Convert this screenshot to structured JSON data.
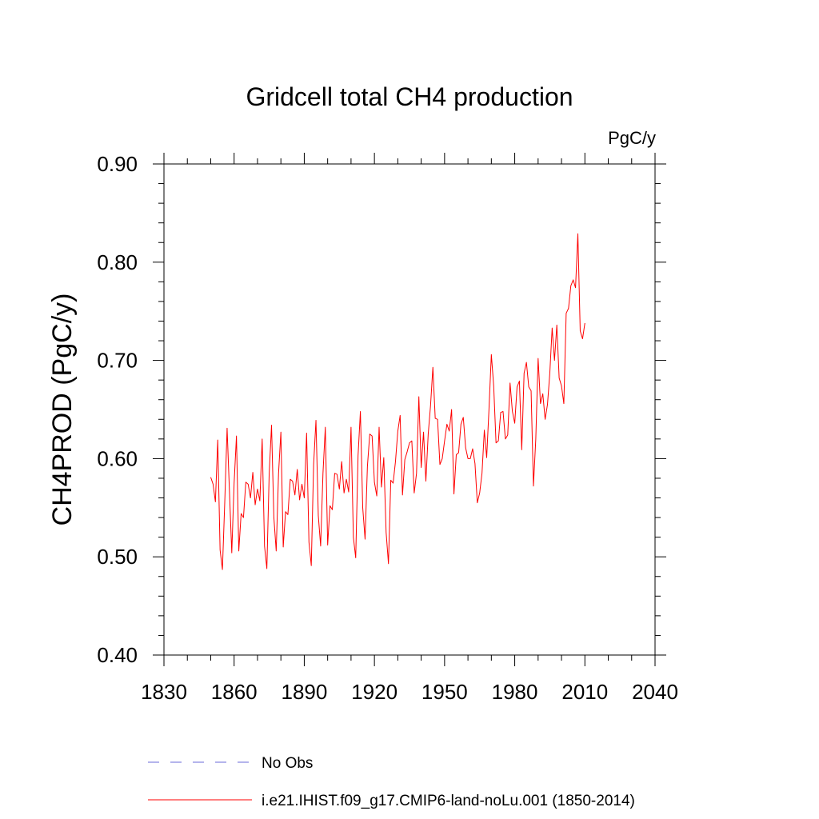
{
  "chart_data": {
    "type": "line",
    "title": "Gridcell total CH4 production",
    "units": "PgC/y",
    "ylabel": "CH4PROD  (PgC/y)",
    "xlabel": "",
    "xlim": [
      1830,
      2040
    ],
    "ylim": [
      0.4,
      0.9
    ],
    "x_ticks": [
      1830,
      1860,
      1890,
      1920,
      1950,
      1980,
      2010,
      2040
    ],
    "x_tick_labels": [
      "1830",
      "1860",
      "1890",
      "1920",
      "1950",
      "1980",
      "2010",
      "2040"
    ],
    "y_ticks": [
      0.4,
      0.5,
      0.6,
      0.7,
      0.8,
      0.9
    ],
    "y_tick_labels": [
      "0.40",
      "0.50",
      "0.60",
      "0.70",
      "0.80",
      "0.90"
    ],
    "grid": false,
    "legend_position": "bottom",
    "legend": [
      {
        "label": "No Obs",
        "color": "#6b6bd8",
        "style": "dashed"
      },
      {
        "label": "i.e21.IHIST.f09_g17.CMIP6-land-noLu.001 (1850-2014)",
        "color": "#ff0000",
        "style": "solid"
      }
    ],
    "series": [
      {
        "name": "i.e21.IHIST.f09_g17.CMIP6-land-noLu.001 (1850-2014)",
        "color": "#ff0000",
        "x_start": 1850,
        "x_step": 1,
        "values": [
          0.581,
          0.574,
          0.556,
          0.619,
          0.507,
          0.487,
          0.556,
          0.631,
          0.567,
          0.504,
          0.575,
          0.623,
          0.506,
          0.544,
          0.54,
          0.576,
          0.574,
          0.56,
          0.586,
          0.553,
          0.569,
          0.557,
          0.62,
          0.511,
          0.488,
          0.585,
          0.634,
          0.54,
          0.506,
          0.585,
          0.627,
          0.51,
          0.546,
          0.543,
          0.579,
          0.577,
          0.563,
          0.589,
          0.558,
          0.574,
          0.56,
          0.626,
          0.515,
          0.491,
          0.594,
          0.639,
          0.542,
          0.511,
          0.585,
          0.632,
          0.512,
          0.552,
          0.548,
          0.585,
          0.584,
          0.569,
          0.597,
          0.565,
          0.579,
          0.566,
          0.632,
          0.52,
          0.499,
          0.603,
          0.648,
          0.55,
          0.518,
          0.592,
          0.625,
          0.623,
          0.576,
          0.562,
          0.632,
          0.571,
          0.601,
          0.525,
          0.493,
          0.578,
          0.575,
          0.597,
          0.628,
          0.644,
          0.563,
          0.599,
          0.607,
          0.616,
          0.618,
          0.565,
          0.585,
          0.663,
          0.591,
          0.627,
          0.577,
          0.625,
          0.654,
          0.693,
          0.641,
          0.64,
          0.594,
          0.6,
          0.618,
          0.635,
          0.628,
          0.65,
          0.564,
          0.604,
          0.606,
          0.635,
          0.642,
          0.611,
          0.6,
          0.6,
          0.61,
          0.595,
          0.555,
          0.565,
          0.585,
          0.629,
          0.601,
          0.651,
          0.706,
          0.674,
          0.616,
          0.618,
          0.647,
          0.648,
          0.62,
          0.624,
          0.677,
          0.648,
          0.636,
          0.673,
          0.679,
          0.609,
          0.687,
          0.698,
          0.673,
          0.669,
          0.572,
          0.62,
          0.702,
          0.656,
          0.666,
          0.64,
          0.655,
          0.687,
          0.733,
          0.7,
          0.736,
          0.682,
          0.674,
          0.656,
          0.748,
          0.753,
          0.776,
          0.782,
          0.774,
          0.829,
          0.73,
          0.722,
          0.738
        ]
      }
    ]
  }
}
